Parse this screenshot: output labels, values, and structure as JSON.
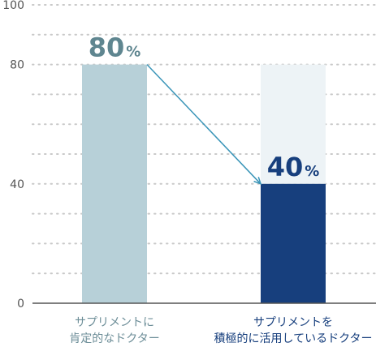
{
  "chart_data": {
    "type": "bar",
    "categories": [
      [
        "サプリメントに",
        "肯定的なドクター"
      ],
      [
        "サプリメントを",
        "積極的に活用しているドクター"
      ]
    ],
    "values": [
      80,
      40
    ],
    "value_labels": [
      {
        "number": "80",
        "unit": "%"
      },
      {
        "number": "40",
        "unit": "%"
      }
    ],
    "yticks": [
      "0",
      "40",
      "80",
      "100"
    ],
    "ylim": [
      0,
      100
    ],
    "grid": true,
    "colors": {
      "bar_1": "#b7d0d8",
      "bar_2": "#173f7d",
      "bar_2_background": "#edf3f6",
      "label_1": "#5f8690",
      "label_2": "#173f7d",
      "category_1": "#6d8e98",
      "category_2": "#173f7d",
      "arrow": "#3a95b8",
      "grid": "#c9c9c9",
      "axis": "#555555"
    }
  }
}
